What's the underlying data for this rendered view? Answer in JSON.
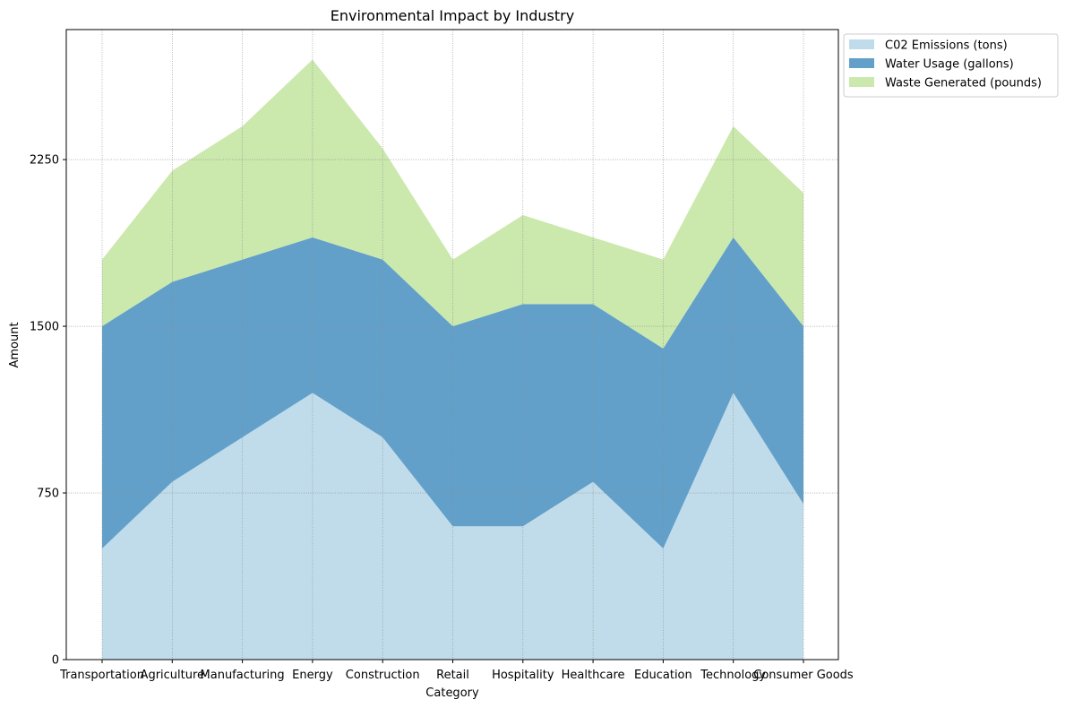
{
  "chart_data": {
    "type": "area",
    "stacked": true,
    "title": "Environmental Impact by Industry",
    "xlabel": "Category",
    "ylabel": "Amount",
    "categories": [
      "Transportation",
      "Agriculture",
      "Manufacturing",
      "Energy",
      "Construction",
      "Retail",
      "Hospitality",
      "Healthcare",
      "Education",
      "Technology",
      "Consumer Goods"
    ],
    "series": [
      {
        "name": "C02 Emissions (tons)",
        "color": "#c0dcea",
        "values": [
          500,
          800,
          1000,
          1200,
          1000,
          600,
          600,
          800,
          500,
          1200,
          700
        ]
      },
      {
        "name": "Water Usage (gallons)",
        "color": "#62a0ca",
        "values": [
          1000,
          900,
          800,
          700,
          800,
          900,
          1000,
          800,
          900,
          700,
          800
        ]
      },
      {
        "name": "Waste Generated (pounds)",
        "color": "#cbe8ad",
        "values": [
          300,
          500,
          600,
          800,
          500,
          300,
          400,
          300,
          400,
          500,
          600
        ]
      }
    ],
    "yticks": [
      0,
      750,
      1500,
      2250
    ],
    "ylim": [
      0,
      2835
    ],
    "grid": true,
    "legend_position": "outside-top-right"
  }
}
